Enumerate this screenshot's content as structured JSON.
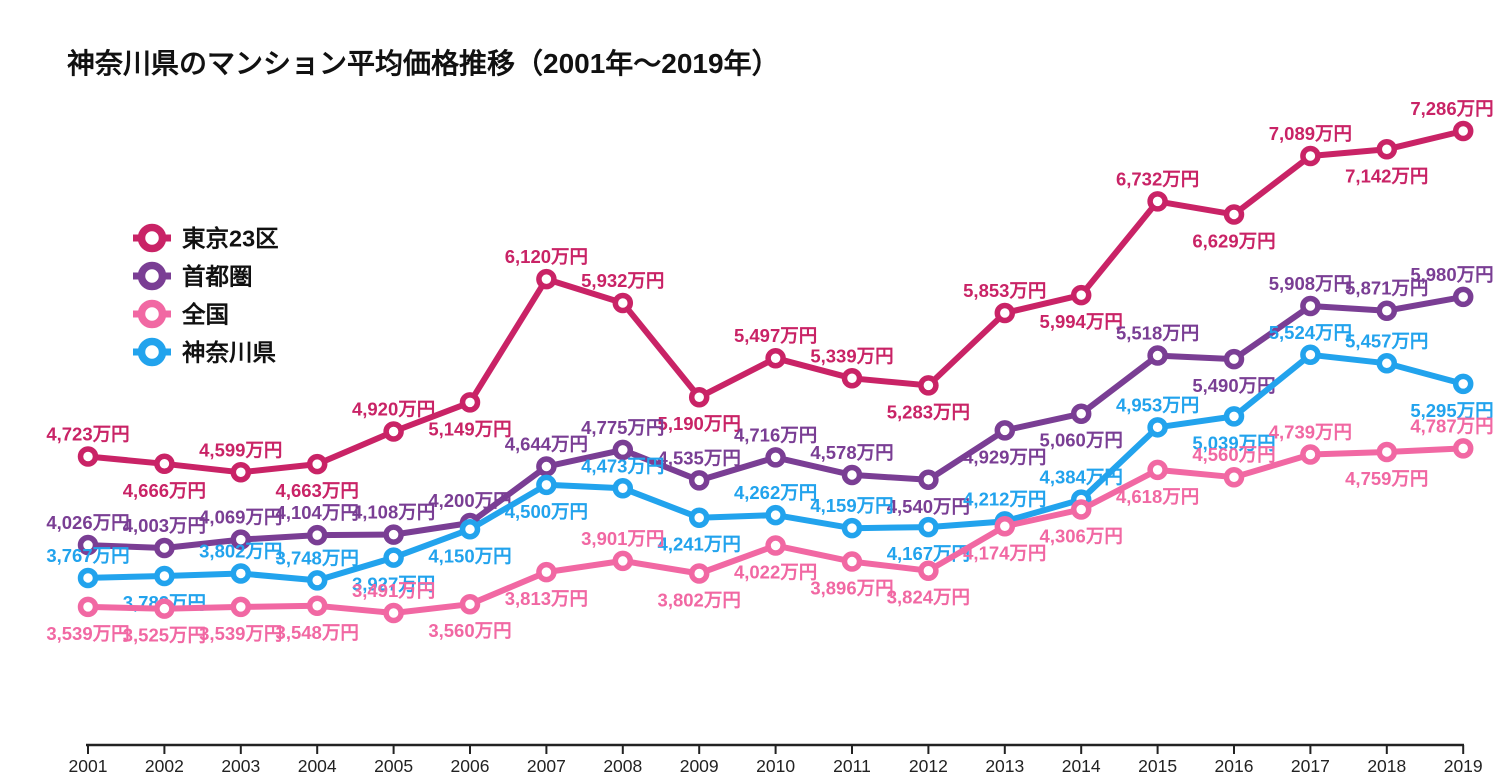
{
  "title": "神奈川県のマンション平均価格推移（2001年〜2019年）",
  "unit_suffix": "万円",
  "chart_data": {
    "type": "line",
    "x": [
      2001,
      2002,
      2003,
      2004,
      2005,
      2006,
      2007,
      2008,
      2009,
      2010,
      2011,
      2012,
      2013,
      2014,
      2015,
      2016,
      2017,
      2018,
      2019
    ],
    "series": [
      {
        "name": "東京23区",
        "color": "#C92366",
        "values": [
          4723,
          4666,
          4599,
          4663,
          4920,
          5149,
          6120,
          5932,
          5190,
          5497,
          5339,
          5283,
          5853,
          5994,
          6732,
          6629,
          7089,
          7142,
          7286
        ],
        "label_side": [
          "a",
          "b",
          "a",
          "b",
          "a",
          "b",
          "a",
          "a",
          "b",
          "a",
          "a",
          "b",
          "a",
          "b",
          "a",
          "b",
          "a",
          "b",
          "a"
        ]
      },
      {
        "name": "首都圏",
        "color": "#7A3E94",
        "values": [
          4026,
          4003,
          4069,
          4104,
          4108,
          4200,
          4644,
          4775,
          4535,
          4716,
          4578,
          4540,
          4929,
          5060,
          5518,
          5490,
          5908,
          5871,
          5980
        ],
        "label_side": [
          "a",
          "a",
          "a",
          "a",
          "a",
          "a",
          "a",
          "a",
          "a",
          "a",
          "a",
          "b",
          "b",
          "b",
          "a",
          "b",
          "a",
          "a",
          "a"
        ]
      },
      {
        "name": "全国",
        "color": "#F168A3",
        "values": [
          3539,
          3525,
          3539,
          3548,
          3491,
          3560,
          3813,
          3901,
          3802,
          4022,
          3896,
          3824,
          4174,
          4306,
          4618,
          4560,
          4739,
          4759,
          4787
        ],
        "label_side": [
          "b",
          "b",
          "b",
          "b",
          "a",
          "b",
          "b",
          "a",
          "b",
          "b",
          "b",
          "b",
          "b",
          "b",
          "b",
          "a",
          "a",
          "b",
          "a"
        ]
      },
      {
        "name": "神奈川県",
        "color": "#22A3ED",
        "values": [
          3767,
          3782,
          3802,
          3748,
          3927,
          4150,
          4500,
          4473,
          4241,
          4262,
          4159,
          4167,
          4212,
          4384,
          4953,
          5039,
          5524,
          5457,
          5295
        ],
        "label_side": [
          "a",
          "b",
          "a",
          "a",
          "b",
          "b",
          "b",
          "a",
          "b",
          "a",
          "a",
          "b",
          "a",
          "a",
          "a",
          "b",
          "a",
          "a",
          "b"
        ]
      }
    ],
    "value_labels_shown": true,
    "grid": false,
    "y_axis_shown": false,
    "legend_position": "upper-left",
    "draw_order": [
      0,
      1,
      3,
      2
    ],
    "xlabel": "",
    "ylabel": "",
    "axis_color": "#222222",
    "background": "#ffffff"
  }
}
